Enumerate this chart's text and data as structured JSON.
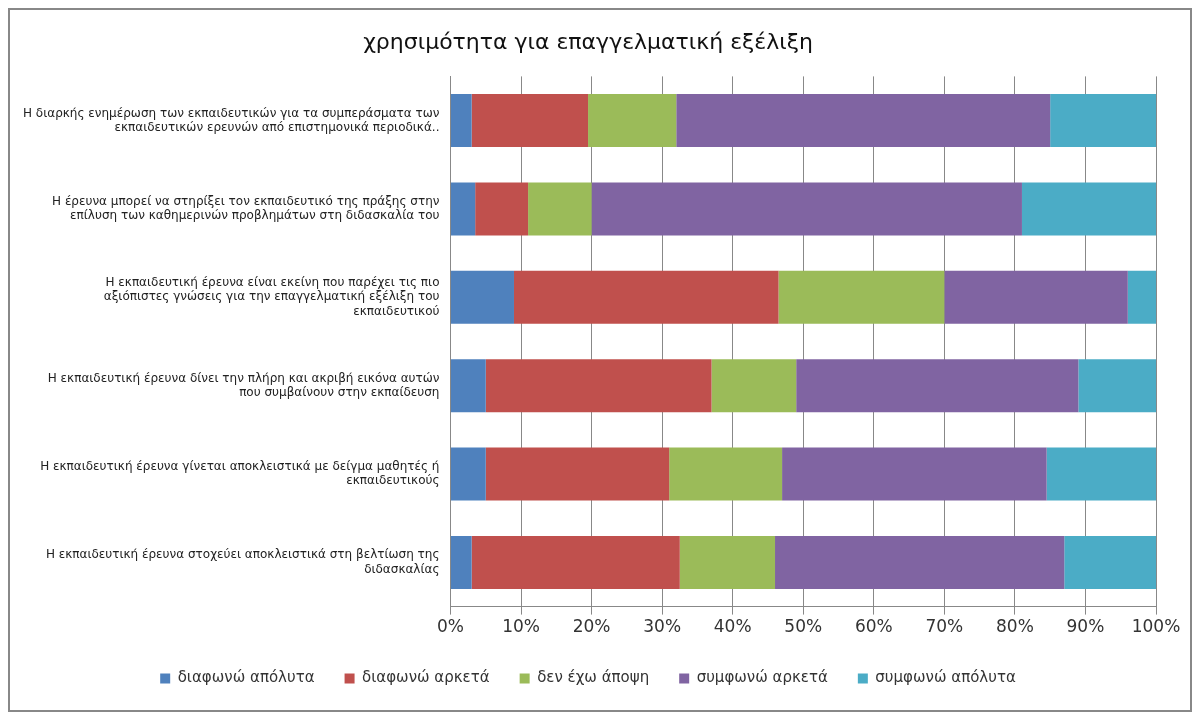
{
  "chart_data": {
    "type": "bar",
    "orientation": "horizontal",
    "stacked": true,
    "title": "χρησιμότητα για επαγγελματική εξέλιξη",
    "categories": [
      "Η διαρκής ενημέρωση των εκπαιδευτικών για τα συμπεράσματα των εκπαιδευτικών ερευνών από επιστημονικά περιοδικά..",
      "Η έρευνα μπορεί να στηρίξει τον εκπαιδευτικό της πράξης στην επίλυση των καθημερινών προβλημάτων στη διδασκαλία του",
      "Η εκπαιδευτική έρευνα είναι εκείνη που παρέχει τις πιο αξιόπιστες γνώσεις για την επαγγελματική εξέλιξη του εκπαιδευτικού",
      "Η εκπαιδευτική έρευνα δίνει την πλήρη και ακριβή εικόνα αυτών που συμβαίνουν στην εκπαίδευση",
      "Η εκπαιδευτική έρευνα γίνεται αποκλειστικά με δείγμα μαθητές ή εκπαιδευτικούς",
      "Η εκπαιδευτική έρευνα στοχεύει αποκλειστικά στη βελτίωση της διδασκαλίας"
    ],
    "series": [
      {
        "name": "διαφωνώ απόλυτα",
        "color": "#4f81bd",
        "values": [
          3,
          3.5,
          9,
          5,
          5,
          3
        ]
      },
      {
        "name": "διαφωνώ αρκετά",
        "color": "#c0504d",
        "values": [
          16.5,
          7.5,
          37.5,
          32,
          26,
          29.5
        ]
      },
      {
        "name": "δεν έχω άποψη",
        "color": "#9bbb59",
        "values": [
          12.5,
          9,
          23.5,
          12,
          16,
          13.5
        ]
      },
      {
        "name": "συμφωνώ αρκετά",
        "color": "#8064a2",
        "values": [
          53,
          61,
          26,
          40,
          37.5,
          41
        ]
      },
      {
        "name": "συμφωνώ απόλυτα",
        "color": "#4bacc6",
        "values": [
          15,
          19,
          4,
          11,
          15.5,
          13
        ]
      }
    ],
    "xlim": [
      0,
      100
    ],
    "xticks": [
      {
        "value": 0,
        "label": "0%"
      },
      {
        "value": 10,
        "label": "10%"
      },
      {
        "value": 20,
        "label": "20%"
      },
      {
        "value": 30,
        "label": "30%"
      },
      {
        "value": 40,
        "label": "40%"
      },
      {
        "value": 50,
        "label": "50%"
      },
      {
        "value": 60,
        "label": "60%"
      },
      {
        "value": 70,
        "label": "70%"
      },
      {
        "value": 80,
        "label": "80%"
      },
      {
        "value": 90,
        "label": "90%"
      },
      {
        "value": 100,
        "label": "100%"
      }
    ],
    "grid": "x",
    "legend": "bottom"
  }
}
